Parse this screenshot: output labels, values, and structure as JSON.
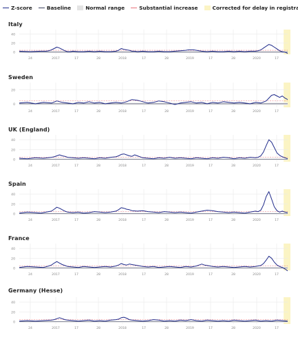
{
  "legend": [
    {
      "label": "Z-score",
      "color": "#1f2a8a",
      "style": "line"
    },
    {
      "label": "Baseline",
      "color": "#3a3f5c",
      "style": "line"
    },
    {
      "label": "Normal range",
      "color": "#e3e3e3",
      "style": "box"
    },
    {
      "label": "Substantial increase",
      "color": "#e8707a",
      "style": "line"
    },
    {
      "label": "Corrected for delay in registration",
      "color": "#fbf4c4",
      "style": "box"
    }
  ],
  "colors": {
    "zscore": "#1f2a8a",
    "baseline": "#4a4f6a",
    "substantial": "#e8707a",
    "correction": "#fbf4c4",
    "grid": "#e9e9e9",
    "tick_text": "#888888"
  },
  "x_tick_labels": [
    "24",
    "2017",
    "17",
    "28",
    "2018",
    "17",
    "28",
    "2019",
    "17",
    "28",
    "2020",
    "17"
  ],
  "y_tick_labels": [
    "0",
    "20",
    "40"
  ],
  "chart_data": [
    {
      "type": "line",
      "title": "Italy",
      "x_tick_labels": [
        "24",
        "2017",
        "17",
        "28",
        "2018",
        "17",
        "28",
        "2019",
        "17",
        "28",
        "2020",
        "17"
      ],
      "ylim": [
        -5,
        50
      ],
      "yticks": [
        0,
        20,
        40
      ],
      "x_range": [
        0,
        100
      ],
      "baseline": 0,
      "substantial_increase": 4,
      "normal_range": [
        -2,
        2
      ],
      "correction_start": 98.5,
      "series": [
        {
          "x": [
            0,
            4,
            8,
            10,
            11,
            12,
            13,
            14,
            15,
            16,
            17,
            18,
            19,
            20,
            22,
            24,
            26,
            28,
            30,
            32,
            34,
            36,
            37,
            38,
            39,
            40,
            41,
            42,
            43,
            44,
            46,
            48,
            50,
            52,
            54,
            56,
            58,
            60,
            62,
            63,
            64,
            65,
            66,
            67,
            68,
            70,
            72,
            74,
            76,
            78,
            80,
            82,
            84,
            86,
            88,
            89,
            90,
            91,
            92,
            93,
            94,
            95,
            96,
            97,
            98,
            99,
            100
          ],
          "values": [
            2,
            1,
            2,
            2,
            3,
            5,
            8,
            11,
            9,
            6,
            3,
            1,
            1,
            2,
            1,
            1,
            2,
            1,
            2,
            1,
            1,
            2,
            4,
            8,
            6,
            5,
            4,
            2,
            2,
            1,
            2,
            1,
            1,
            2,
            1,
            1,
            2,
            3,
            4,
            5,
            5,
            5,
            4,
            3,
            2,
            1,
            2,
            1,
            1,
            2,
            1,
            2,
            1,
            2,
            2,
            3,
            5,
            9,
            13,
            17,
            15,
            11,
            7,
            3,
            1,
            0,
            -3
          ]
        }
      ]
    },
    {
      "type": "line",
      "title": "Sweden",
      "x_tick_labels": [
        "24",
        "2017",
        "17",
        "28",
        "2018",
        "17",
        "28",
        "2019",
        "17",
        "28",
        "2020",
        "17"
      ],
      "ylim": [
        -5,
        30
      ],
      "yticks": [
        0,
        20
      ],
      "x_range": [
        0,
        100
      ],
      "baseline": 0,
      "substantial_increase": 4,
      "normal_range": [
        -2,
        2
      ],
      "correction_start": 98.5,
      "series": [
        {
          "x": [
            0,
            3,
            6,
            9,
            12,
            14,
            16,
            18,
            20,
            22,
            24,
            26,
            28,
            30,
            32,
            34,
            36,
            38,
            40,
            42,
            44,
            46,
            48,
            50,
            52,
            54,
            56,
            58,
            60,
            62,
            64,
            66,
            68,
            70,
            72,
            74,
            76,
            78,
            80,
            82,
            84,
            86,
            88,
            90,
            92,
            93,
            94,
            95,
            96,
            97,
            98,
            99,
            100
          ],
          "values": [
            1,
            2,
            0,
            2,
            1,
            4,
            2,
            1,
            0,
            2,
            1,
            3,
            1,
            2,
            0,
            1,
            2,
            1,
            3,
            6,
            5,
            3,
            1,
            2,
            4,
            3,
            1,
            -1,
            1,
            2,
            3,
            1,
            2,
            0,
            2,
            1,
            3,
            2,
            1,
            2,
            1,
            0,
            2,
            1,
            4,
            8,
            12,
            13,
            11,
            9,
            11,
            8,
            6
          ]
        }
      ]
    },
    {
      "type": "line",
      "title": "UK (England)",
      "x_tick_labels": [
        "24",
        "2017",
        "17",
        "28",
        "2018",
        "17",
        "28",
        "2019",
        "17",
        "28",
        "2020",
        "17"
      ],
      "ylim": [
        -5,
        50
      ],
      "yticks": [
        0,
        20,
        40
      ],
      "x_range": [
        0,
        100
      ],
      "baseline": 0,
      "substantial_increase": 4,
      "normal_range": [
        -2,
        2
      ],
      "correction_start": 98.5,
      "series": [
        {
          "x": [
            0,
            3,
            6,
            9,
            12,
            13,
            14,
            15,
            16,
            17,
            18,
            20,
            22,
            24,
            26,
            28,
            30,
            32,
            34,
            36,
            37,
            38,
            39,
            40,
            41,
            42,
            43,
            44,
            46,
            48,
            50,
            52,
            54,
            56,
            58,
            60,
            62,
            64,
            66,
            68,
            70,
            72,
            74,
            76,
            78,
            80,
            82,
            84,
            86,
            88,
            89,
            90,
            91,
            92,
            93,
            94,
            95,
            96,
            97,
            98,
            99,
            100
          ],
          "values": [
            2,
            1,
            3,
            2,
            4,
            5,
            7,
            9,
            7,
            6,
            4,
            3,
            2,
            3,
            2,
            1,
            3,
            2,
            4,
            5,
            7,
            10,
            11,
            9,
            7,
            6,
            9,
            7,
            3,
            2,
            1,
            3,
            2,
            4,
            2,
            3,
            2,
            1,
            3,
            2,
            1,
            3,
            2,
            4,
            3,
            1,
            3,
            2,
            4,
            3,
            4,
            7,
            15,
            28,
            40,
            35,
            24,
            13,
            8,
            5,
            3,
            1
          ]
        }
      ]
    },
    {
      "type": "line",
      "title": "Spain",
      "x_tick_labels": [
        "24",
        "2017",
        "17",
        "28",
        "2018",
        "17",
        "28",
        "2019",
        "17",
        "28",
        "2020",
        "17"
      ],
      "ylim": [
        -5,
        50
      ],
      "yticks": [
        0,
        20,
        40
      ],
      "x_range": [
        0,
        100
      ],
      "baseline": 0,
      "substantial_increase": 4,
      "normal_range": [
        -2,
        2
      ],
      "correction_start": 98.5,
      "series": [
        {
          "x": [
            0,
            3,
            6,
            8,
            10,
            12,
            13,
            14,
            15,
            16,
            17,
            18,
            20,
            22,
            24,
            26,
            28,
            30,
            32,
            34,
            36,
            37,
            38,
            39,
            40,
            41,
            42,
            44,
            46,
            48,
            50,
            52,
            54,
            56,
            58,
            60,
            62,
            64,
            66,
            68,
            70,
            72,
            74,
            76,
            78,
            80,
            82,
            84,
            86,
            88,
            89,
            90,
            91,
            92,
            93,
            94,
            95,
            96,
            97,
            98,
            99,
            100
          ],
          "values": [
            1,
            3,
            2,
            1,
            3,
            5,
            9,
            13,
            11,
            8,
            5,
            3,
            2,
            3,
            1,
            2,
            4,
            3,
            2,
            3,
            5,
            8,
            12,
            11,
            9,
            8,
            6,
            5,
            6,
            4,
            3,
            2,
            4,
            3,
            2,
            3,
            2,
            1,
            3,
            5,
            7,
            6,
            4,
            3,
            2,
            3,
            2,
            1,
            3,
            5,
            4,
            7,
            18,
            35,
            45,
            30,
            14,
            6,
            3,
            5,
            3,
            2
          ]
        }
      ]
    },
    {
      "type": "line",
      "title": "France",
      "x_tick_labels": [
        "24",
        "2017",
        "17",
        "28",
        "2018",
        "17",
        "28",
        "2019",
        "17",
        "28",
        "2020",
        "17"
      ],
      "ylim": [
        -5,
        50
      ],
      "yticks": [
        0,
        20,
        40
      ],
      "x_range": [
        0,
        100
      ],
      "baseline": 0,
      "substantial_increase": 4,
      "normal_range": [
        -2,
        2
      ],
      "correction_start": 98.5,
      "series": [
        {
          "x": [
            0,
            3,
            6,
            9,
            11,
            12,
            13,
            14,
            15,
            16,
            17,
            18,
            20,
            22,
            24,
            26,
            28,
            30,
            32,
            34,
            36,
            37,
            38,
            39,
            40,
            41,
            42,
            44,
            46,
            48,
            50,
            52,
            54,
            56,
            58,
            60,
            62,
            64,
            66,
            67,
            68,
            69,
            70,
            72,
            74,
            76,
            78,
            80,
            82,
            84,
            86,
            88,
            90,
            91,
            92,
            93,
            94,
            95,
            96,
            97,
            98,
            99,
            100
          ],
          "values": [
            1,
            3,
            2,
            1,
            4,
            6,
            10,
            13,
            10,
            7,
            5,
            3,
            2,
            1,
            3,
            2,
            1,
            2,
            3,
            2,
            4,
            6,
            9,
            7,
            6,
            8,
            7,
            5,
            3,
            2,
            3,
            1,
            2,
            3,
            2,
            1,
            3,
            2,
            4,
            6,
            8,
            6,
            5,
            3,
            2,
            3,
            2,
            1,
            2,
            3,
            2,
            3,
            5,
            9,
            16,
            24,
            20,
            12,
            6,
            3,
            1,
            -2,
            -6
          ]
        }
      ]
    },
    {
      "type": "line",
      "title": "Germany (Hesse)",
      "x_tick_labels": [
        "24",
        "2017",
        "17",
        "28",
        "2018",
        "17",
        "28",
        "2019",
        "17",
        "28",
        "2020",
        "17"
      ],
      "ylim": [
        -5,
        50
      ],
      "yticks": [
        0,
        20,
        40
      ],
      "x_range": [
        0,
        100
      ],
      "baseline": 0,
      "substantial_increase": 4,
      "normal_range": [
        -2,
        2
      ],
      "correction_start": 98.5,
      "series": [
        {
          "x": [
            0,
            3,
            6,
            9,
            12,
            13,
            14,
            15,
            16,
            17,
            18,
            20,
            22,
            24,
            26,
            28,
            30,
            32,
            34,
            36,
            37,
            38,
            39,
            40,
            41,
            42,
            44,
            46,
            48,
            50,
            52,
            54,
            56,
            58,
            60,
            62,
            64,
            66,
            68,
            70,
            72,
            74,
            76,
            78,
            80,
            82,
            84,
            86,
            88,
            90,
            92,
            94,
            96,
            98,
            100
          ],
          "values": [
            1,
            2,
            1,
            2,
            3,
            4,
            6,
            8,
            6,
            4,
            3,
            2,
            1,
            2,
            3,
            1,
            2,
            1,
            3,
            4,
            5,
            8,
            9,
            7,
            4,
            3,
            2,
            1,
            2,
            4,
            3,
            1,
            2,
            1,
            3,
            2,
            4,
            2,
            1,
            3,
            2,
            1,
            2,
            1,
            3,
            2,
            1,
            2,
            3,
            1,
            2,
            1,
            3,
            2,
            1
          ]
        }
      ]
    }
  ]
}
